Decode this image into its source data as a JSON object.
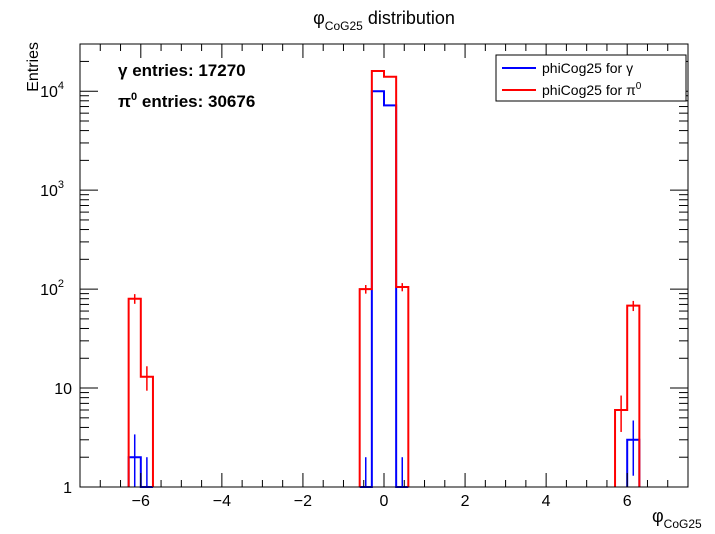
{
  "chart_data": {
    "type": "histogram",
    "title": {
      "main": "φ",
      "sub": "CoG25",
      "suffix": " distribution"
    },
    "xlabel": {
      "main": "φ",
      "sub": "CoG25"
    },
    "ylabel": "Entries",
    "xlim": [
      -7.5,
      7.5
    ],
    "ylim": [
      1,
      30000
    ],
    "yscale": "log",
    "grid": false,
    "legend_position": "top-right",
    "x_ticks": [
      -6,
      -4,
      -2,
      0,
      2,
      4,
      6
    ],
    "x_tick_labels": [
      "−6",
      "−4",
      "−2",
      "0",
      "2",
      "4",
      "6"
    ],
    "y_tick_labels": [
      {
        "value": 1,
        "base": "1",
        "exp": ""
      },
      {
        "value": 10,
        "base": "10",
        "exp": ""
      },
      {
        "value": 100,
        "base": "10",
        "exp": "2"
      },
      {
        "value": 1000,
        "base": "10",
        "exp": "3"
      },
      {
        "value": 10000,
        "base": "10",
        "exp": "4"
      }
    ],
    "annotations": [
      {
        "symbol": "γ",
        "sup": "",
        "text": " entries: 17270"
      },
      {
        "symbol": "π",
        "sup": "0",
        "text": " entries: 30676"
      }
    ],
    "series": [
      {
        "name": "phiCog25 for γ",
        "legend_text": "phiCog25 for ",
        "legend_symbol": "γ",
        "legend_sup": "",
        "color": "#0000ff",
        "bins": [
          {
            "lo": -6.3,
            "hi": -6.0,
            "value": 2,
            "err": 1.4
          },
          {
            "lo": -6.0,
            "hi": -5.7,
            "value": 1,
            "err": 1.0
          },
          {
            "lo": -0.6,
            "hi": -0.3,
            "value": 1,
            "err": 1.0
          },
          {
            "lo": -0.3,
            "hi": 0.0,
            "value": 10000,
            "err": 100
          },
          {
            "lo": 0.0,
            "hi": 0.3,
            "value": 7200,
            "err": 85
          },
          {
            "lo": 0.3,
            "hi": 0.6,
            "value": 1,
            "err": 1.0
          },
          {
            "lo": 6.0,
            "hi": 6.3,
            "value": 3,
            "err": 1.7
          }
        ]
      },
      {
        "name": "phiCog25 for π0",
        "legend_text": "phiCog25 for ",
        "legend_symbol": "π",
        "legend_sup": "0",
        "color": "#ff0000",
        "bins": [
          {
            "lo": -6.3,
            "hi": -6.0,
            "value": 80,
            "err": 9
          },
          {
            "lo": -6.0,
            "hi": -5.7,
            "value": 13,
            "err": 3.6
          },
          {
            "lo": -0.6,
            "hi": -0.3,
            "value": 100,
            "err": 10
          },
          {
            "lo": -0.3,
            "hi": 0.0,
            "value": 16000,
            "err": 126
          },
          {
            "lo": 0.0,
            "hi": 0.3,
            "value": 14000,
            "err": 118
          },
          {
            "lo": 0.3,
            "hi": 0.6,
            "value": 105,
            "err": 10
          },
          {
            "lo": 5.7,
            "hi": 6.0,
            "value": 6,
            "err": 2.4
          },
          {
            "lo": 6.0,
            "hi": 6.3,
            "value": 68,
            "err": 8
          }
        ]
      }
    ]
  }
}
